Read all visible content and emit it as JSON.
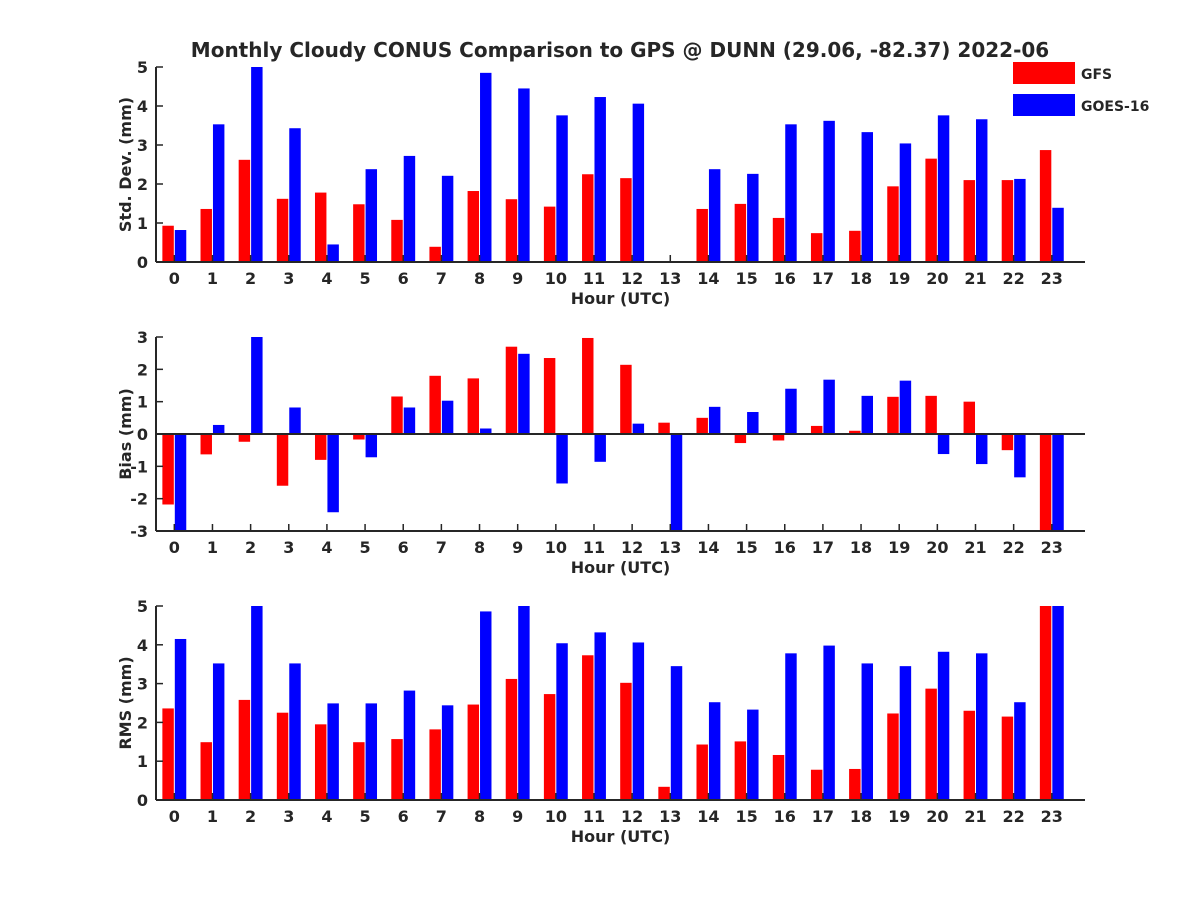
{
  "title": "Monthly Cloudy CONUS Comparison to GPS @ DUNN (29.06, -82.37) 2022-06",
  "colors": {
    "GFS": "#ff0000",
    "GOES-16": "#0000ff"
  },
  "legend": {
    "placement": "top-right",
    "entries": [
      "GFS",
      "GOES-16"
    ]
  },
  "chart_data": [
    {
      "type": "bar",
      "xlabel": "Hour (UTC)",
      "ylabel": "Std. Dev. (mm)",
      "ylim": [
        0,
        5
      ],
      "yticks": [
        0,
        1,
        2,
        3,
        4,
        5
      ],
      "grid": false,
      "categories": [
        "0",
        "1",
        "2",
        "3",
        "4",
        "5",
        "6",
        "7",
        "8",
        "9",
        "10",
        "11",
        "12",
        "13",
        "14",
        "15",
        "16",
        "17",
        "18",
        "19",
        "20",
        "21",
        "22",
        "23"
      ],
      "series": [
        {
          "name": "GFS",
          "values": [
            0.93,
            1.36,
            2.62,
            1.62,
            1.78,
            1.48,
            1.08,
            0.39,
            1.82,
            1.61,
            1.42,
            2.25,
            2.15,
            0.0,
            1.36,
            1.49,
            1.13,
            0.74,
            0.8,
            1.94,
            2.65,
            2.1,
            2.1,
            2.87
          ]
        },
        {
          "name": "GOES-16",
          "values": [
            0.82,
            3.53,
            5.0,
            3.43,
            0.45,
            2.38,
            2.72,
            2.21,
            4.85,
            4.45,
            3.76,
            4.23,
            4.06,
            0.0,
            2.38,
            2.26,
            3.53,
            3.62,
            3.33,
            3.04,
            3.76,
            3.66,
            2.13,
            1.39
          ]
        }
      ]
    },
    {
      "type": "bar",
      "xlabel": "Hour (UTC)",
      "ylabel": "Bias (mm)",
      "ylim": [
        -3,
        3
      ],
      "yticks": [
        -3,
        -2,
        -1,
        0,
        1,
        2,
        3
      ],
      "grid": false,
      "categories": [
        "0",
        "1",
        "2",
        "3",
        "4",
        "5",
        "6",
        "7",
        "8",
        "9",
        "10",
        "11",
        "12",
        "13",
        "14",
        "15",
        "16",
        "17",
        "18",
        "19",
        "20",
        "21",
        "22",
        "23"
      ],
      "series": [
        {
          "name": "GFS",
          "values": [
            -2.18,
            -0.63,
            -0.24,
            -1.6,
            -0.8,
            -0.17,
            1.16,
            1.8,
            1.72,
            2.7,
            2.35,
            2.97,
            2.14,
            0.35,
            0.5,
            -0.28,
            -0.2,
            0.25,
            0.1,
            1.15,
            1.18,
            1.0,
            -0.5,
            -3.0
          ]
        },
        {
          "name": "GOES-16",
          "values": [
            -3.0,
            0.28,
            3.0,
            0.82,
            -2.42,
            -0.72,
            0.82,
            1.03,
            0.17,
            2.48,
            -1.53,
            -0.86,
            0.32,
            -3.0,
            0.84,
            0.68,
            1.4,
            1.68,
            1.18,
            1.65,
            -0.62,
            -0.93,
            -1.34,
            -3.0
          ]
        }
      ]
    },
    {
      "type": "bar",
      "xlabel": "Hour (UTC)",
      "ylabel": "RMS (mm)",
      "ylim": [
        0,
        5
      ],
      "yticks": [
        0,
        1,
        2,
        3,
        4,
        5
      ],
      "grid": false,
      "categories": [
        "0",
        "1",
        "2",
        "3",
        "4",
        "5",
        "6",
        "7",
        "8",
        "9",
        "10",
        "11",
        "12",
        "13",
        "14",
        "15",
        "16",
        "17",
        "18",
        "19",
        "20",
        "21",
        "22",
        "23"
      ],
      "series": [
        {
          "name": "GFS",
          "values": [
            2.36,
            1.49,
            2.58,
            2.25,
            1.95,
            1.49,
            1.57,
            1.82,
            2.46,
            3.12,
            2.73,
            3.73,
            3.02,
            0.34,
            1.43,
            1.51,
            1.16,
            0.78,
            0.8,
            2.23,
            2.87,
            2.3,
            2.15,
            5.0
          ]
        },
        {
          "name": "GOES-16",
          "values": [
            4.15,
            3.52,
            5.0,
            3.52,
            2.49,
            2.49,
            2.82,
            2.44,
            4.86,
            5.0,
            4.04,
            4.32,
            4.06,
            3.45,
            2.52,
            2.33,
            3.78,
            3.98,
            3.52,
            3.45,
            3.82,
            3.78,
            2.52,
            5.0
          ]
        }
      ]
    }
  ]
}
